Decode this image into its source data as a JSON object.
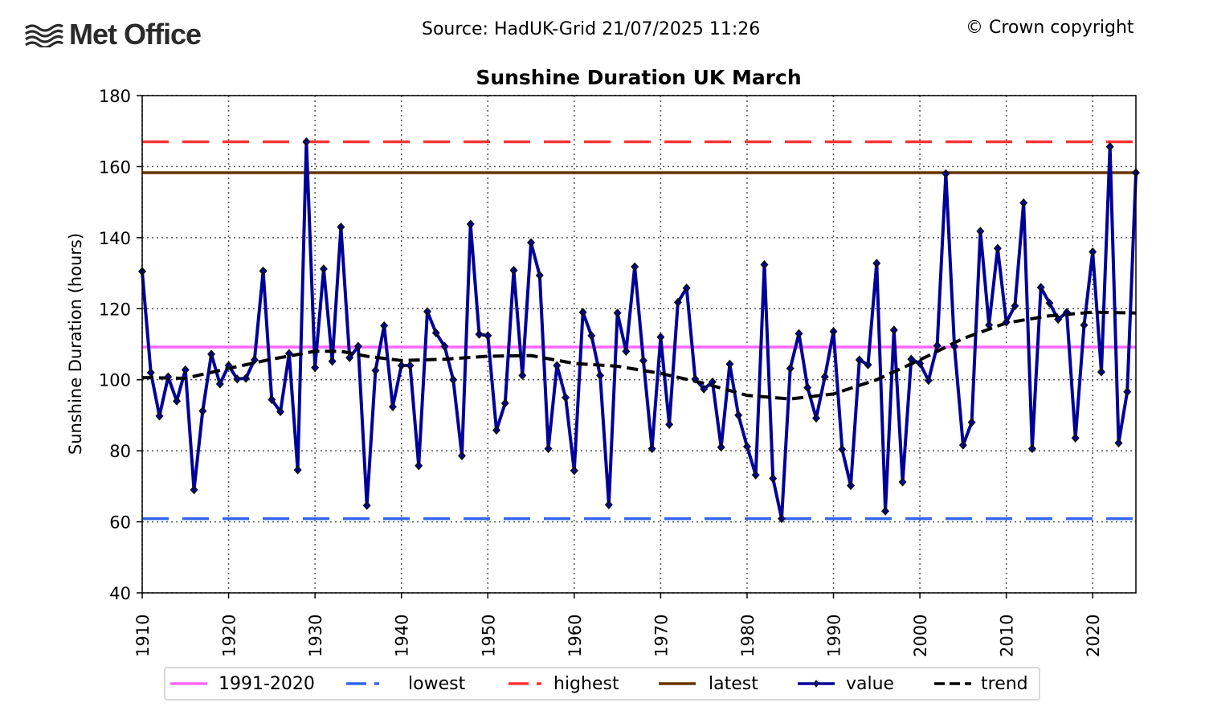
{
  "header": {
    "logo_text": "Met Office",
    "source": "Source: HadUK-Grid 21/07/2025 11:26",
    "copyright": "© Crown copyright"
  },
  "chart_data": {
    "type": "line",
    "title": "Sunshine Duration UK March",
    "xlabel": "",
    "ylabel": "Sunshine Duration (hours)",
    "xlim": [
      1910,
      2025
    ],
    "ylim": [
      40,
      180
    ],
    "x_ticks": [
      1910,
      1920,
      1930,
      1940,
      1950,
      1960,
      1970,
      1980,
      1990,
      2000,
      2010,
      2020
    ],
    "y_ticks": [
      40,
      60,
      80,
      100,
      120,
      140,
      160,
      180
    ],
    "grid": true,
    "legend_position": "bottom",
    "colors": {
      "baseline": "#ff66ff",
      "lowest": "#3366ee",
      "highest": "#ff3333",
      "latest": "#663300",
      "value": "#000099",
      "trend": "#000000"
    },
    "reference_lines": {
      "baseline_1991_2020": 109.2,
      "lowest": 60.9,
      "highest": 167.0,
      "latest": 158.3
    },
    "legend": [
      "1991-2020",
      "lowest",
      "highest",
      "latest",
      "value",
      "trend"
    ],
    "series": [
      {
        "name": "value",
        "x": [
          1910,
          1911,
          1912,
          1913,
          1914,
          1915,
          1916,
          1917,
          1918,
          1919,
          1920,
          1921,
          1922,
          1923,
          1924,
          1925,
          1926,
          1927,
          1928,
          1929,
          1930,
          1931,
          1932,
          1933,
          1934,
          1935,
          1936,
          1937,
          1938,
          1939,
          1940,
          1941,
          1942,
          1943,
          1944,
          1945,
          1946,
          1947,
          1948,
          1949,
          1950,
          1951,
          1952,
          1953,
          1954,
          1955,
          1956,
          1957,
          1958,
          1959,
          1960,
          1961,
          1962,
          1963,
          1964,
          1965,
          1966,
          1967,
          1968,
          1969,
          1970,
          1971,
          1972,
          1973,
          1974,
          1975,
          1976,
          1977,
          1978,
          1979,
          1980,
          1981,
          1982,
          1983,
          1984,
          1985,
          1986,
          1987,
          1988,
          1989,
          1990,
          1991,
          1992,
          1993,
          1994,
          1995,
          1996,
          1997,
          1998,
          1999,
          2000,
          2001,
          2002,
          2003,
          2004,
          2005,
          2006,
          2007,
          2008,
          2009,
          2010,
          2011,
          2012,
          2013,
          2014,
          2015,
          2016,
          2017,
          2018,
          2019,
          2020,
          2021,
          2022,
          2023,
          2024,
          2025
        ],
        "values": [
          130.5,
          102.0,
          89.8,
          100.8,
          94.0,
          102.8,
          69.0,
          91.2,
          107.2,
          98.8,
          104.0,
          100.2,
          100.4,
          105.6,
          130.6,
          94.4,
          91.0,
          107.4,
          74.6,
          167.0,
          103.4,
          131.2,
          105.2,
          143.0,
          106.2,
          109.4,
          64.6,
          102.6,
          115.2,
          92.4,
          104.0,
          104.0,
          75.8,
          119.2,
          113.2,
          109.4,
          100.0,
          78.6,
          143.8,
          112.8,
          112.4,
          85.8,
          93.4,
          130.8,
          101.2,
          138.6,
          129.4,
          80.6,
          104.0,
          95.0,
          74.4,
          119.0,
          112.4,
          101.2,
          64.8,
          118.8,
          108.0,
          131.8,
          105.4,
          80.6,
          112.0,
          87.4,
          121.8,
          125.8,
          100.2,
          97.4,
          99.4,
          81.0,
          104.4,
          90.0,
          81.2,
          73.2,
          132.4,
          72.2,
          60.9,
          103.2,
          113.0,
          97.8,
          89.2,
          100.8,
          113.6,
          80.4,
          70.2,
          105.6,
          104.2,
          132.8,
          63.0,
          114.0,
          71.2,
          105.8,
          104.6,
          99.8,
          109.6,
          158.0,
          109.4,
          81.6,
          88.0,
          141.8,
          115.4,
          137.0,
          116.2,
          120.8,
          149.8,
          80.6,
          126.0,
          121.6,
          117.0,
          119.0,
          83.6,
          115.4,
          136.0,
          102.2,
          165.6,
          82.2,
          96.6,
          158.3
        ]
      },
      {
        "name": "trend",
        "x": [
          1910,
          1915,
          1920,
          1925,
          1930,
          1933,
          1936,
          1940,
          1945,
          1950,
          1955,
          1960,
          1965,
          1970,
          1975,
          1980,
          1985,
          1990,
          1995,
          2000,
          2005,
          2010,
          2015,
          2020,
          2025
        ],
        "values": [
          100.6,
          100.4,
          103.2,
          105.8,
          108.0,
          108.0,
          106.6,
          105.4,
          105.8,
          106.6,
          106.8,
          104.6,
          103.8,
          101.8,
          99.0,
          95.6,
          94.6,
          96.0,
          100.0,
          105.6,
          111.6,
          116.0,
          118.0,
          119.0,
          118.8
        ]
      }
    ]
  }
}
